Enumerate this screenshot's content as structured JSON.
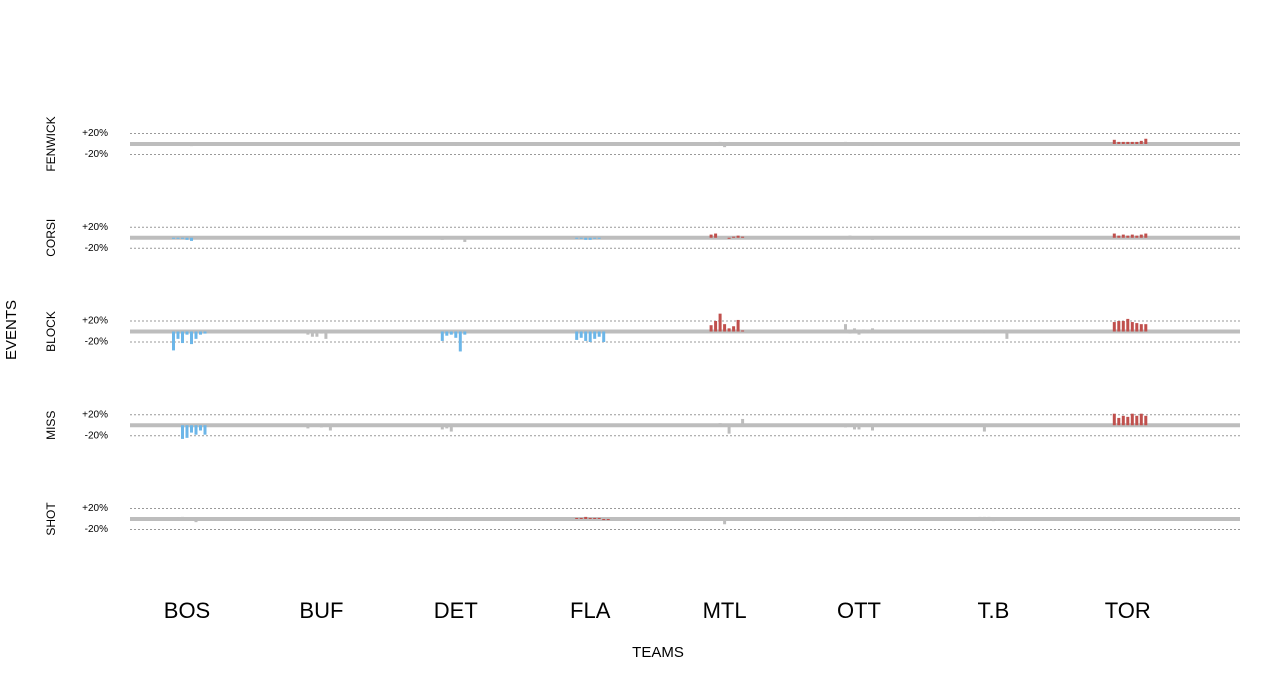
{
  "chart_data": {
    "type": "bar",
    "x_label": "TEAMS",
    "y_label": "EVENTS",
    "categories": [
      "BOS",
      "BUF",
      "DET",
      "FLA",
      "MTL",
      "OTT",
      "T.B",
      "TOR"
    ],
    "ylim": [
      -40,
      40
    ],
    "yticks": [
      {
        "value": 20,
        "label": "+20%"
      },
      {
        "value": -20,
        "label": "-20%"
      }
    ],
    "grid": true,
    "panels": [
      {
        "label": "FENWICK",
        "values": [
          [
            0,
            0,
            0,
            0,
            -4,
            0,
            0,
            0
          ],
          [
            0,
            0,
            0,
            0,
            0,
            0,
            0,
            0
          ],
          [
            0,
            0,
            0,
            -2,
            0,
            0,
            0,
            0
          ],
          [
            0,
            0,
            0,
            0,
            0,
            0,
            0,
            0
          ],
          [
            2,
            2,
            4,
            -6,
            0,
            0,
            0,
            0
          ],
          [
            4,
            0,
            0,
            -2,
            0,
            0,
            -2,
            0
          ],
          [
            0,
            0,
            0,
            0,
            2,
            0,
            0,
            0
          ],
          [
            8,
            4,
            4,
            4,
            4,
            4,
            6,
            10
          ]
        ],
        "colors": [
          "#bdbdbd",
          "#bdbdbd",
          "#bdbdbd",
          "#bdbdbd",
          "#bdbdbd",
          "#bdbdbd",
          "#bdbdbd",
          "#c0504d"
        ]
      },
      {
        "label": "CORSI",
        "values": [
          [
            -2,
            -2,
            -2,
            -4,
            -6,
            0,
            0,
            0
          ],
          [
            0,
            0,
            0,
            0,
            0,
            0,
            0,
            0
          ],
          [
            -4,
            0,
            0,
            0,
            -2,
            -8,
            0,
            0
          ],
          [
            -2,
            -2,
            -4,
            -4,
            -2,
            -2,
            0,
            0
          ],
          [
            6,
            8,
            0,
            0,
            -2,
            2,
            4,
            2
          ],
          [
            0,
            4,
            -2,
            0,
            0,
            0,
            -4,
            0
          ],
          [
            0,
            0,
            0,
            0,
            0,
            0,
            0,
            0
          ],
          [
            8,
            4,
            6,
            4,
            6,
            4,
            6,
            8
          ]
        ],
        "colors": [
          "#6cb6e8",
          "#bdbdbd",
          "#bdbdbd",
          "#6cb6e8",
          "#c0504d",
          "#bdbdbd",
          "#bdbdbd",
          "#c0504d"
        ]
      },
      {
        "label": "BLOCK",
        "values": [
          [
            -36,
            -14,
            -22,
            -6,
            -24,
            -14,
            -6,
            -4
          ],
          [
            -6,
            -10,
            -10,
            -4,
            -14,
            0,
            0,
            0
          ],
          [
            -18,
            -8,
            -6,
            -12,
            -38,
            -6,
            0,
            0
          ],
          [
            -16,
            -12,
            -18,
            -20,
            -14,
            -10,
            -20,
            0
          ],
          [
            12,
            20,
            34,
            14,
            6,
            10,
            22,
            2
          ],
          [
            14,
            -4,
            6,
            -6,
            4,
            -2,
            6,
            0
          ],
          [
            0,
            -2,
            0,
            0,
            0,
            0,
            -14,
            0
          ],
          [
            18,
            20,
            20,
            24,
            18,
            16,
            14,
            14
          ]
        ],
        "colors": [
          "#6cb6e8",
          "#bdbdbd",
          "#6cb6e8",
          "#6cb6e8",
          "#c0504d",
          "#bdbdbd",
          "#bdbdbd",
          "#c0504d"
        ]
      },
      {
        "label": "MISS",
        "values": [
          [
            0,
            0,
            -26,
            -24,
            -14,
            -18,
            -10,
            -18
          ],
          [
            -6,
            -2,
            0,
            -4,
            0,
            -10,
            0,
            0
          ],
          [
            -8,
            -6,
            -12,
            0,
            0,
            0,
            0,
            0
          ],
          [
            0,
            0,
            0,
            0,
            -2,
            0,
            0,
            0
          ],
          [
            0,
            0,
            4,
            0,
            -16,
            0,
            0,
            12
          ],
          [
            -4,
            -2,
            -8,
            -8,
            0,
            0,
            -10,
            0
          ],
          [
            0,
            -12,
            0,
            0,
            0,
            2,
            0,
            2
          ],
          [
            22,
            14,
            18,
            16,
            22,
            18,
            22,
            18
          ]
        ],
        "colors": [
          "#6cb6e8",
          "#bdbdbd",
          "#bdbdbd",
          "#bdbdbd",
          "#bdbdbd",
          "#bdbdbd",
          "#bdbdbd",
          "#c0504d"
        ]
      },
      {
        "label": "SHOT",
        "values": [
          [
            0,
            2,
            4,
            0,
            0,
            -6,
            0,
            0
          ],
          [
            0,
            2,
            0,
            0,
            0,
            0,
            2,
            0
          ],
          [
            0,
            2,
            0,
            2,
            0,
            0,
            0,
            0
          ],
          [
            2,
            2,
            4,
            2,
            2,
            2,
            -2,
            -2
          ],
          [
            0,
            0,
            2,
            -10,
            0,
            0,
            0,
            0
          ],
          [
            2,
            0,
            0,
            0,
            0,
            0,
            0,
            0
          ],
          [
            4,
            4,
            4,
            -4,
            0,
            0,
            0,
            0
          ],
          [
            0,
            0,
            0,
            0,
            2,
            0,
            0,
            0
          ]
        ],
        "colors": [
          "#bdbdbd",
          "#bdbdbd",
          "#bdbdbd",
          "#c0504d",
          "#bdbdbd",
          "#bdbdbd",
          "#bdbdbd",
          "#bdbdbd"
        ]
      }
    ]
  }
}
